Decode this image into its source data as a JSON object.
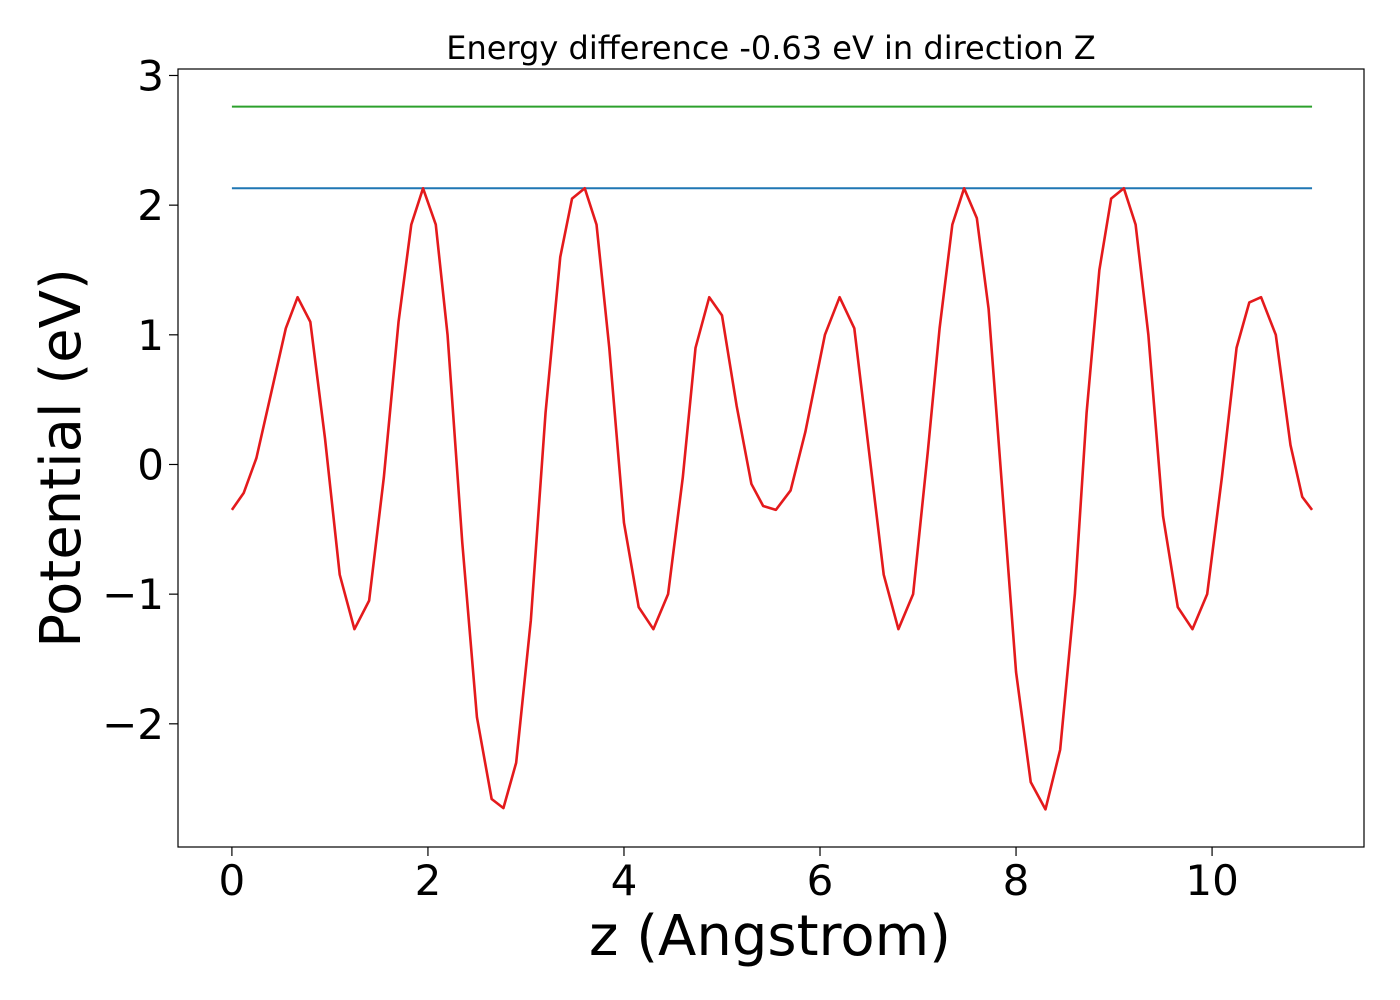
{
  "chart_data": {
    "type": "line",
    "title": "Energy difference -0.63 eV in direction Z",
    "xlabel": "z (Angstrom)",
    "ylabel": "Potential (eV)",
    "xlim": [
      -0.55,
      11.55
    ],
    "ylim": [
      -2.95,
      3.05
    ],
    "xticks": [
      0,
      2,
      4,
      6,
      8,
      10
    ],
    "xtick_labels": [
      "0",
      "2",
      "4",
      "6",
      "8",
      "10"
    ],
    "yticks": [
      -2,
      -1,
      0,
      1,
      2,
      3
    ],
    "ytick_labels": [
      "−2",
      "−1",
      "0",
      "1",
      "2",
      "3"
    ],
    "grid": false,
    "series": [
      {
        "color": "#2ca02c",
        "x": [
          0,
          11.02
        ],
        "y": [
          2.76,
          2.76
        ]
      },
      {
        "color": "#1f77b4",
        "x": [
          0,
          11.02
        ],
        "y": [
          2.13,
          2.13
        ]
      },
      {
        "color": "#e41a1c",
        "x": [
          0,
          0.12,
          0.25,
          0.4,
          0.55,
          0.67,
          0.8,
          0.95,
          1.1,
          1.25,
          1.4,
          1.55,
          1.7,
          1.83,
          1.95,
          2.08,
          2.2,
          2.35,
          2.5,
          2.65,
          2.77,
          2.9,
          3.05,
          3.2,
          3.35,
          3.47,
          3.6,
          3.72,
          3.85,
          4.0,
          4.15,
          4.3,
          4.45,
          4.6,
          4.73,
          4.87,
          5.0,
          5.15,
          5.3,
          5.42,
          5.55,
          5.7,
          5.85,
          6.05,
          6.2,
          6.35,
          6.5,
          6.65,
          6.8,
          6.95,
          7.1,
          7.22,
          7.35,
          7.47,
          7.6,
          7.72,
          7.85,
          8.0,
          8.15,
          8.3,
          8.45,
          8.6,
          8.72,
          8.85,
          8.97,
          9.1,
          9.22,
          9.35,
          9.5,
          9.65,
          9.8,
          9.95,
          10.1,
          10.25,
          10.38,
          10.5,
          10.65,
          10.8,
          10.92,
          11.02
        ],
        "y": [
          -0.35,
          -0.22,
          0.05,
          0.55,
          1.05,
          1.29,
          1.1,
          0.2,
          -0.85,
          -1.27,
          -1.05,
          -0.1,
          1.1,
          1.85,
          2.13,
          1.85,
          1.0,
          -0.6,
          -1.95,
          -2.58,
          -2.65,
          -2.3,
          -1.2,
          0.4,
          1.6,
          2.05,
          2.13,
          1.85,
          0.9,
          -0.45,
          -1.1,
          -1.27,
          -1.0,
          -0.1,
          0.9,
          1.29,
          1.15,
          0.45,
          -0.15,
          -0.32,
          -0.35,
          -0.2,
          0.25,
          1.0,
          1.29,
          1.05,
          0.1,
          -0.85,
          -1.27,
          -1.0,
          0.1,
          1.05,
          1.85,
          2.13,
          1.9,
          1.2,
          -0.1,
          -1.6,
          -2.45,
          -2.66,
          -2.2,
          -1.0,
          0.4,
          1.5,
          2.05,
          2.13,
          1.85,
          1.0,
          -0.4,
          -1.1,
          -1.27,
          -1.0,
          -0.1,
          0.9,
          1.25,
          1.29,
          1.0,
          0.15,
          -0.25,
          -0.35
        ]
      }
    ]
  }
}
